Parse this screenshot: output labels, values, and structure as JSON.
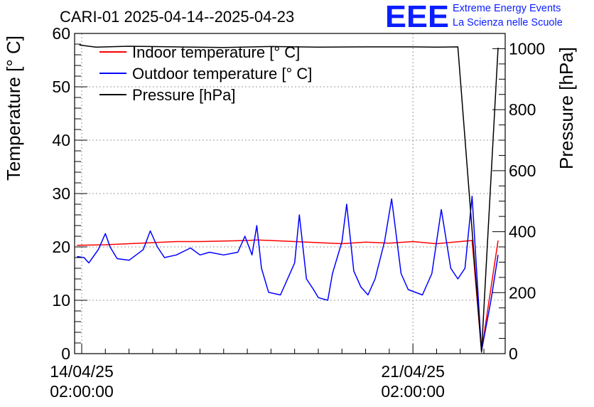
{
  "logo": {
    "text": "EEE",
    "line1": "Extreme Energy Events",
    "line2": "La Scienza nelle Scuole",
    "color": "#0b1eff"
  },
  "chart_data": {
    "type": "line",
    "title": "CARI-01 2025-04-14--2025-04-23",
    "ylabel": "Temperature [° C]",
    "y2label": "Pressure [hPa]",
    "ylim": [
      0,
      60
    ],
    "y2lim": [
      0,
      1050
    ],
    "xlim": [
      -0.15,
      8.95
    ],
    "x_unit": "days since 14/04/25 02:00:00",
    "yticks": [
      "0",
      "10",
      "20",
      "30",
      "40",
      "50",
      "60"
    ],
    "y2ticks": [
      "0",
      "200",
      "400",
      "600",
      "800",
      "1000"
    ],
    "xticks": [
      {
        "x": 0,
        "line1": "14/04/25",
        "line2": "02:00:00"
      },
      {
        "x": 7,
        "line1": "21/04/25",
        "line2": "02:00:00"
      }
    ],
    "grid": true,
    "legend_position": "top-left",
    "series": [
      {
        "name": "Indoor temperature [° C]",
        "color": "#ff0000",
        "axis": "left",
        "x": [
          -0.1,
          0.5,
          1,
          1.5,
          2,
          2.5,
          3,
          3.5,
          3.7,
          4,
          4.5,
          5,
          5.5,
          6,
          6.5,
          7,
          7.5,
          8,
          8.25,
          8.45,
          8.8
        ],
        "y": [
          20.3,
          20.4,
          20.6,
          20.8,
          21.0,
          21.0,
          21.1,
          21.2,
          21.3,
          21.2,
          21.0,
          20.8,
          20.6,
          20.9,
          20.7,
          21.0,
          20.6,
          21.0,
          21.2,
          0.5,
          21.2
        ]
      },
      {
        "name": "Outdoor temperature [° C]",
        "color": "#0000ff",
        "axis": "left",
        "x": [
          -0.1,
          0.05,
          0.15,
          0.35,
          0.5,
          0.6,
          0.75,
          1.0,
          1.3,
          1.45,
          1.6,
          1.75,
          2.0,
          2.3,
          2.5,
          2.7,
          3.0,
          3.3,
          3.45,
          3.6,
          3.7,
          3.8,
          3.95,
          4.2,
          4.5,
          4.6,
          4.75,
          4.9,
          5.0,
          5.2,
          5.3,
          5.5,
          5.6,
          5.75,
          5.9,
          6.05,
          6.2,
          6.4,
          6.55,
          6.75,
          6.9,
          7.2,
          7.4,
          7.6,
          7.8,
          7.95,
          8.1,
          8.25,
          8.45,
          8.65,
          8.8
        ],
        "y": [
          18.2,
          18.0,
          17.0,
          19.5,
          22.5,
          20.0,
          17.8,
          17.5,
          19.5,
          23.0,
          20.0,
          18.0,
          18.5,
          19.8,
          18.5,
          19.0,
          18.5,
          19.0,
          22.0,
          18.5,
          24.0,
          16.0,
          11.5,
          11.0,
          17.0,
          26.0,
          14.0,
          12.0,
          10.5,
          10.0,
          15.0,
          21.0,
          28.0,
          15.5,
          12.5,
          11.0,
          14.0,
          21.0,
          29.0,
          15.0,
          12.0,
          11.0,
          15.0,
          27.0,
          16.0,
          14.0,
          16.0,
          29.5,
          0.5,
          10.0,
          18.5
        ]
      },
      {
        "name": "Pressure [hPa]",
        "color": "#000000",
        "axis": "right",
        "x": [
          -0.05,
          0.3,
          1,
          2,
          3,
          4,
          5,
          6,
          7,
          7.5,
          7.95,
          8.45,
          8.8
        ],
        "y": [
          1012,
          1005,
          1008,
          1006,
          1004,
          1007,
          1005,
          1006,
          1006,
          1005,
          1006,
          5,
          1003
        ]
      }
    ]
  }
}
